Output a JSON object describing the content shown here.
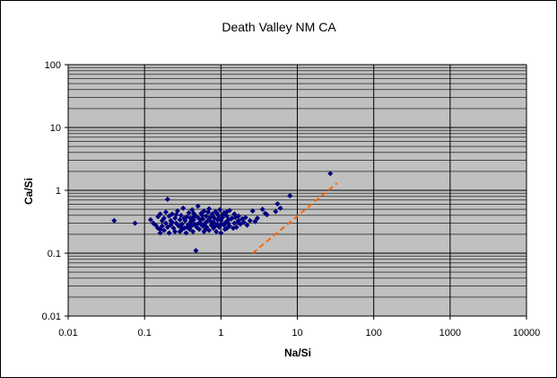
{
  "chart_data": {
    "type": "scatter",
    "title": "Death Valley NM CA",
    "xlabel": "Na/Si",
    "ylabel": "Ca/Si",
    "x_scale": "log",
    "y_scale": "log",
    "xlim": [
      0.01,
      10000
    ],
    "ylim": [
      0.01,
      100
    ],
    "x_ticks": [
      "0.01",
      "0.1",
      "1",
      "10",
      "100",
      "1000",
      "10000"
    ],
    "y_ticks": [
      "0.01",
      "0.1",
      "1",
      "10",
      "100"
    ],
    "grid": true,
    "legend": "none",
    "colors": {
      "plot_background": "#c0c0c0",
      "points": "#000080",
      "trend_line": "#ff6600",
      "grid": "#000000"
    },
    "series": [
      {
        "marker": "diamond",
        "points": [
          [
            0.04,
            0.33
          ],
          [
            0.075,
            0.3
          ],
          [
            0.12,
            0.34
          ],
          [
            0.13,
            0.3
          ],
          [
            0.14,
            0.28
          ],
          [
            0.15,
            0.38
          ],
          [
            0.15,
            0.25
          ],
          [
            0.16,
            0.21
          ],
          [
            0.16,
            0.42
          ],
          [
            0.17,
            0.33
          ],
          [
            0.17,
            0.27
          ],
          [
            0.18,
            0.36
          ],
          [
            0.18,
            0.23
          ],
          [
            0.19,
            0.45
          ],
          [
            0.19,
            0.3
          ],
          [
            0.2,
            0.72
          ],
          [
            0.2,
            0.26
          ],
          [
            0.21,
            0.39
          ],
          [
            0.21,
            0.21
          ],
          [
            0.22,
            0.33
          ],
          [
            0.22,
            0.28
          ],
          [
            0.23,
            0.42
          ],
          [
            0.24,
            0.25
          ],
          [
            0.25,
            0.36
          ],
          [
            0.25,
            0.22
          ],
          [
            0.26,
            0.3
          ],
          [
            0.27,
            0.47
          ],
          [
            0.28,
            0.27
          ],
          [
            0.29,
            0.34
          ],
          [
            0.3,
            0.23
          ],
          [
            0.3,
            0.4
          ],
          [
            0.31,
            0.29
          ],
          [
            0.32,
            0.52
          ],
          [
            0.33,
            0.25
          ],
          [
            0.34,
            0.33
          ],
          [
            0.35,
            0.21
          ],
          [
            0.36,
            0.38
          ],
          [
            0.37,
            0.28
          ],
          [
            0.38,
            0.44
          ],
          [
            0.39,
            0.24
          ],
          [
            0.4,
            0.31
          ],
          [
            0.4,
            0.36
          ],
          [
            0.41,
            0.27
          ],
          [
            0.42,
            0.49
          ],
          [
            0.43,
            0.22
          ],
          [
            0.44,
            0.34
          ],
          [
            0.45,
            0.29
          ],
          [
            0.46,
            0.4
          ],
          [
            0.47,
            0.11
          ],
          [
            0.48,
            0.26
          ],
          [
            0.5,
            0.37
          ],
          [
            0.5,
            0.56
          ],
          [
            0.52,
            0.24
          ],
          [
            0.53,
            0.31
          ],
          [
            0.55,
            0.43
          ],
          [
            0.56,
            0.28
          ],
          [
            0.58,
            0.35
          ],
          [
            0.6,
            0.22
          ],
          [
            0.6,
            0.47
          ],
          [
            0.62,
            0.3
          ],
          [
            0.64,
            0.39
          ],
          [
            0.65,
            0.26
          ],
          [
            0.67,
            0.33
          ],
          [
            0.7,
            0.51
          ],
          [
            0.7,
            0.23
          ],
          [
            0.72,
            0.37
          ],
          [
            0.75,
            0.28
          ],
          [
            0.77,
            0.42
          ],
          [
            0.8,
            0.31
          ],
          [
            0.8,
            0.25
          ],
          [
            0.82,
            0.36
          ],
          [
            0.85,
            0.46
          ],
          [
            0.87,
            0.22
          ],
          [
            0.9,
            0.34
          ],
          [
            0.9,
            0.29
          ],
          [
            0.92,
            0.4
          ],
          [
            0.95,
            0.26
          ],
          [
            0.97,
            0.49
          ],
          [
            1.0,
            0.33
          ],
          [
            1.0,
            0.21
          ],
          [
            1.05,
            0.37
          ],
          [
            1.1,
            0.28
          ],
          [
            1.1,
            0.44
          ],
          [
            1.15,
            0.31
          ],
          [
            1.2,
            0.25
          ],
          [
            1.2,
            0.39
          ],
          [
            1.25,
            0.34
          ],
          [
            1.3,
            0.48
          ],
          [
            1.3,
            0.27
          ],
          [
            1.4,
            0.36
          ],
          [
            1.5,
            0.3
          ],
          [
            1.5,
            0.42
          ],
          [
            1.6,
            0.26
          ],
          [
            1.7,
            0.39
          ],
          [
            1.7,
            0.33
          ],
          [
            1.8,
            0.29
          ],
          [
            1.9,
            0.35
          ],
          [
            2.0,
            0.31
          ],
          [
            2.1,
            0.37
          ],
          [
            2.2,
            0.28
          ],
          [
            2.4,
            0.33
          ],
          [
            2.6,
            0.47
          ],
          [
            2.8,
            0.32
          ],
          [
            3.0,
            0.36
          ],
          [
            3.5,
            0.5
          ],
          [
            3.8,
            0.43
          ],
          [
            4.0,
            0.41
          ],
          [
            5.2,
            0.46
          ],
          [
            5.5,
            0.61
          ],
          [
            6.0,
            0.52
          ],
          [
            8.0,
            0.82
          ],
          [
            27.0,
            1.85
          ],
          [
            0.16,
            0.24
          ],
          [
            0.23,
            0.31
          ],
          [
            0.26,
            0.41
          ],
          [
            0.29,
            0.22
          ],
          [
            0.33,
            0.36
          ],
          [
            0.36,
            0.26
          ],
          [
            0.41,
            0.33
          ],
          [
            0.44,
            0.43
          ],
          [
            0.49,
            0.29
          ],
          [
            0.54,
            0.34
          ],
          [
            0.57,
            0.4
          ],
          [
            0.63,
            0.24
          ],
          [
            0.68,
            0.45
          ],
          [
            0.74,
            0.32
          ],
          [
            0.79,
            0.38
          ],
          [
            0.84,
            0.27
          ],
          [
            0.89,
            0.43
          ],
          [
            0.94,
            0.36
          ],
          [
            1.02,
            0.29
          ],
          [
            1.08,
            0.41
          ],
          [
            1.13,
            0.24
          ],
          [
            1.18,
            0.45
          ],
          [
            1.24,
            0.3
          ],
          [
            1.35,
            0.35
          ],
          [
            1.45,
            0.25
          ],
          [
            1.55,
            0.37
          ],
          [
            1.65,
            0.31
          ],
          [
            0.3,
            0.26
          ],
          [
            0.43,
            0.37
          ],
          [
            0.58,
            0.27
          ]
        ]
      }
    ],
    "trend_line": {
      "style": "dashed",
      "points": [
        [
          2.6,
          0.1
        ],
        [
          33.0,
          1.3
        ]
      ]
    }
  }
}
